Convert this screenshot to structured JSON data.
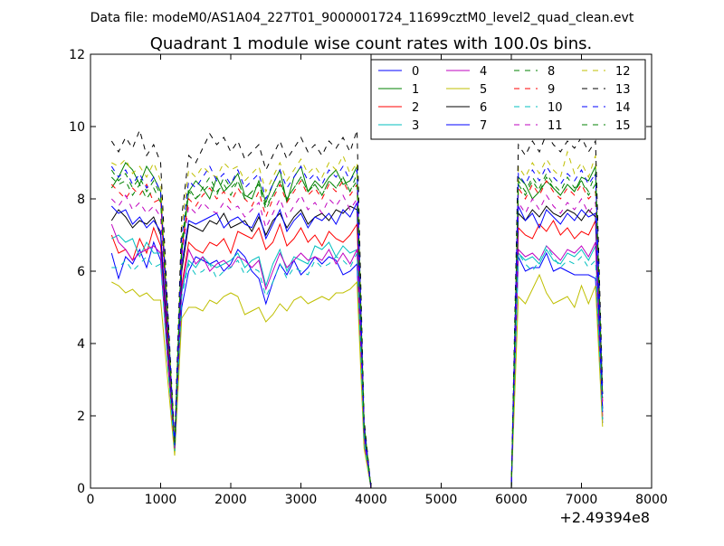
{
  "chart_data": {
    "type": "line",
    "suptitle": "Data file: modeM0/AS1A04_227T01_9000001724_11699cztM0_level2_quad_clean.evt",
    "title": "Quadrant 1 module wise count rates with 100.0s bins.",
    "xlabel": "",
    "ylabel": "",
    "x_offset_label": "+2.49394e8",
    "xlim": [
      0,
      8000
    ],
    "ylim": [
      0,
      12
    ],
    "xticks": [
      0,
      1000,
      2000,
      3000,
      4000,
      5000,
      6000,
      7000,
      8000
    ],
    "yticks": [
      0,
      2,
      4,
      6,
      8,
      10,
      12
    ],
    "legend_position": "top-right",
    "legend_columns": 4,
    "x": [
      300,
      400,
      500,
      600,
      700,
      800,
      900,
      1000,
      1100,
      1200,
      1300,
      1400,
      1500,
      1600,
      1700,
      1800,
      1900,
      2000,
      2100,
      2200,
      2300,
      2400,
      2500,
      2600,
      2700,
      2800,
      2900,
      3000,
      3100,
      3200,
      3300,
      3400,
      3500,
      3600,
      3700,
      3800,
      3900,
      4000,
      4100,
      4200,
      4300,
      4400,
      4500,
      4600,
      4700,
      4800,
      4900,
      5000,
      5100,
      5200,
      5300,
      5400,
      5500,
      5600,
      5700,
      5800,
      5900,
      6000,
      6100,
      6200,
      6300,
      6400,
      6500,
      6600,
      6700,
      6800,
      6900,
      7000,
      7100,
      7200,
      7300
    ],
    "series": [
      {
        "name": "0",
        "color": "#0000ff",
        "dash": "solid",
        "values": [
          6.5,
          5.8,
          6.4,
          6.2,
          6.6,
          6.1,
          6.8,
          6.3,
          3.5,
          1.0,
          5.0,
          6.0,
          6.4,
          6.3,
          6.2,
          6.3,
          6.0,
          6.2,
          6.6,
          6.4,
          6.0,
          5.8,
          5.1,
          5.7,
          6.2,
          5.9,
          6.3,
          5.9,
          6.1,
          6.4,
          6.2,
          6.4,
          6.3,
          5.9,
          6.0,
          6.2,
          1.2,
          0,
          0,
          0,
          0,
          0,
          0,
          0,
          0,
          0,
          0,
          0,
          0,
          0,
          0,
          0,
          0,
          0,
          0,
          0,
          0,
          0,
          6.4,
          6.0,
          6.1,
          6.1,
          6.5,
          6.0,
          6.1,
          6.0,
          5.9,
          5.9,
          5.9,
          5.8,
          1.8
        ]
      },
      {
        "name": "1",
        "color": "#008000",
        "dash": "solid",
        "values": [
          8.3,
          8.6,
          9.0,
          8.8,
          8.4,
          8.9,
          8.6,
          8.2,
          4.8,
          1.2,
          6.5,
          8.2,
          8.5,
          8.3,
          8.0,
          8.6,
          8.2,
          8.4,
          8.7,
          8.1,
          8.0,
          8.5,
          7.9,
          8.4,
          8.8,
          7.9,
          8.6,
          8.9,
          8.2,
          8.5,
          8.3,
          8.6,
          8.8,
          8.4,
          8.5,
          8.9,
          1.8,
          0,
          0,
          0,
          0,
          0,
          0,
          0,
          0,
          0,
          0,
          0,
          0,
          0,
          0,
          0,
          0,
          0,
          0,
          0,
          0,
          0,
          8.6,
          8.4,
          8.0,
          8.2,
          8.5,
          8.3,
          8.1,
          8.4,
          8.2,
          8.6,
          8.5,
          8.9,
          2.6
        ]
      },
      {
        "name": "2",
        "color": "#ff0000",
        "dash": "solid",
        "values": [
          7.0,
          6.5,
          6.6,
          6.3,
          6.9,
          6.5,
          7.2,
          6.7,
          3.8,
          1.1,
          5.6,
          6.8,
          6.6,
          6.5,
          6.8,
          6.7,
          6.9,
          6.5,
          7.1,
          7.0,
          6.9,
          7.2,
          6.6,
          6.8,
          7.3,
          6.7,
          6.9,
          7.2,
          6.8,
          7.0,
          6.7,
          7.1,
          6.9,
          6.8,
          7.0,
          7.3,
          1.4,
          0,
          0,
          0,
          0,
          0,
          0,
          0,
          0,
          0,
          0,
          0,
          0,
          0,
          0,
          0,
          0,
          0,
          0,
          0,
          0,
          0,
          7.2,
          7.0,
          6.9,
          7.3,
          7.1,
          7.4,
          7.0,
          7.2,
          6.9,
          7.1,
          7.0,
          7.4,
          2.0
        ]
      },
      {
        "name": "3",
        "color": "#00bfbf",
        "dash": "solid",
        "values": [
          6.9,
          7.0,
          6.8,
          6.9,
          6.4,
          6.8,
          6.5,
          6.5,
          3.6,
          1.0,
          5.4,
          6.3,
          6.1,
          6.4,
          6.2,
          6.1,
          6.2,
          6.3,
          6.5,
          6.1,
          6.3,
          6.4,
          5.6,
          6.2,
          6.6,
          6.0,
          6.4,
          6.3,
          6.2,
          6.7,
          6.6,
          6.8,
          6.4,
          6.7,
          6.5,
          6.6,
          1.3,
          0,
          0,
          0,
          0,
          0,
          0,
          0,
          0,
          0,
          0,
          0,
          0,
          0,
          0,
          0,
          0,
          0,
          0,
          0,
          0,
          0,
          6.5,
          6.3,
          6.4,
          6.2,
          6.6,
          6.3,
          6.2,
          6.5,
          6.4,
          6.6,
          6.3,
          6.7,
          1.9
        ]
      },
      {
        "name": "4",
        "color": "#bf00bf",
        "dash": "solid",
        "values": [
          7.3,
          6.8,
          6.6,
          6.3,
          6.5,
          6.6,
          6.7,
          6.5,
          3.6,
          1.0,
          5.5,
          6.6,
          6.2,
          6.4,
          6.0,
          6.2,
          6.3,
          6.1,
          6.4,
          6.3,
          6.1,
          6.3,
          5.5,
          6.0,
          6.5,
          6.1,
          6.3,
          6.5,
          6.3,
          6.4,
          6.3,
          6.6,
          6.2,
          6.5,
          6.2,
          6.6,
          1.3,
          0,
          0,
          0,
          0,
          0,
          0,
          0,
          0,
          0,
          0,
          0,
          0,
          0,
          0,
          0,
          0,
          0,
          0,
          0,
          0,
          0,
          6.6,
          6.4,
          6.5,
          6.3,
          6.7,
          6.5,
          6.3,
          6.6,
          6.5,
          6.7,
          6.4,
          6.8,
          1.9
        ]
      },
      {
        "name": "5",
        "color": "#bfbf00",
        "dash": "solid",
        "values": [
          5.7,
          5.6,
          5.4,
          5.5,
          5.3,
          5.4,
          5.2,
          5.2,
          3.0,
          0.9,
          4.7,
          5.0,
          5.0,
          4.9,
          5.2,
          5.1,
          5.3,
          5.4,
          5.3,
          4.8,
          4.9,
          5.0,
          4.6,
          4.8,
          5.1,
          4.9,
          5.2,
          5.3,
          5.1,
          5.2,
          5.3,
          5.2,
          5.4,
          5.4,
          5.5,
          5.7,
          1.1,
          0,
          0,
          0,
          0,
          0,
          0,
          0,
          0,
          0,
          0,
          0,
          0,
          0,
          0,
          0,
          0,
          0,
          0,
          0,
          0,
          0,
          5.3,
          5.1,
          5.5,
          5.9,
          5.4,
          5.1,
          5.2,
          5.3,
          5.0,
          5.6,
          5.1,
          5.6,
          1.7
        ]
      },
      {
        "name": "6",
        "color": "#000000",
        "dash": "solid",
        "values": [
          7.4,
          7.7,
          7.5,
          7.2,
          7.4,
          7.3,
          7.5,
          7.0,
          4.0,
          1.1,
          6.0,
          7.3,
          7.2,
          7.1,
          7.4,
          7.3,
          7.6,
          7.2,
          7.3,
          7.4,
          7.1,
          7.5,
          7.0,
          7.4,
          7.6,
          7.2,
          7.5,
          7.7,
          7.3,
          7.5,
          7.6,
          7.4,
          7.7,
          7.6,
          7.8,
          7.7,
          1.6,
          0,
          0,
          0,
          0,
          0,
          0,
          0,
          0,
          0,
          0,
          0,
          0,
          0,
          0,
          0,
          0,
          0,
          0,
          0,
          0,
          0,
          7.6,
          7.4,
          7.7,
          7.5,
          7.8,
          7.6,
          7.5,
          7.7,
          7.6,
          7.4,
          7.7,
          7.5,
          2.2
        ]
      },
      {
        "name": "7",
        "color": "#0000ff",
        "dash": "solid",
        "values": [
          7.8,
          7.6,
          7.7,
          7.3,
          7.5,
          7.2,
          7.4,
          7.1,
          4.2,
          1.1,
          6.2,
          7.4,
          7.3,
          7.4,
          7.5,
          7.6,
          7.2,
          7.4,
          7.5,
          7.3,
          7.2,
          7.6,
          6.9,
          7.3,
          7.7,
          7.1,
          7.4,
          7.6,
          7.2,
          7.5,
          7.4,
          7.6,
          7.3,
          7.7,
          7.5,
          7.9,
          1.5,
          0,
          0,
          0,
          0,
          0,
          0,
          0,
          0,
          0,
          0,
          0,
          0,
          0,
          0,
          0,
          0,
          0,
          0,
          0,
          0,
          0,
          7.8,
          7.4,
          7.6,
          7.2,
          7.7,
          7.5,
          7.3,
          7.6,
          7.4,
          7.7,
          7.5,
          7.6,
          2.1
        ]
      },
      {
        "name": "8",
        "color": "#008000",
        "dash": "dashed",
        "values": [
          8.8,
          8.5,
          8.7,
          8.3,
          8.6,
          8.2,
          8.5,
          8.1,
          4.6,
          1.2,
          6.8,
          8.3,
          8.0,
          8.2,
          8.4,
          8.1,
          8.6,
          8.3,
          8.5,
          8.0,
          8.2,
          8.4,
          7.8,
          8.1,
          8.5,
          8.0,
          8.3,
          8.6,
          8.2,
          8.4,
          8.1,
          8.5,
          8.3,
          8.6,
          8.2,
          8.7,
          1.7,
          0,
          0,
          0,
          0,
          0,
          0,
          0,
          0,
          0,
          0,
          0,
          0,
          0,
          0,
          0,
          0,
          0,
          0,
          0,
          0,
          0,
          8.5,
          8.2,
          8.6,
          8.3,
          8.7,
          8.4,
          8.2,
          8.6,
          8.3,
          8.5,
          8.2,
          8.7,
          2.5
        ]
      },
      {
        "name": "9",
        "color": "#ff0000",
        "dash": "dashed",
        "values": [
          8.4,
          8.2,
          8.0,
          8.3,
          8.1,
          8.4,
          7.9,
          8.0,
          4.4,
          1.2,
          6.6,
          8.0,
          7.8,
          8.1,
          8.3,
          8.0,
          8.2,
          7.9,
          8.3,
          8.0,
          7.8,
          8.2,
          7.5,
          8.0,
          8.4,
          7.9,
          8.2,
          8.5,
          8.1,
          8.3,
          8.0,
          8.4,
          8.2,
          8.5,
          8.1,
          8.4,
          1.6,
          0,
          0,
          0,
          0,
          0,
          0,
          0,
          0,
          0,
          0,
          0,
          0,
          0,
          0,
          0,
          0,
          0,
          0,
          0,
          0,
          0,
          8.3,
          8.0,
          8.4,
          8.1,
          8.5,
          8.2,
          8.0,
          8.3,
          8.1,
          8.4,
          8.0,
          8.2,
          2.4
        ]
      },
      {
        "name": "10",
        "color": "#00bfbf",
        "dash": "dashed",
        "values": [
          6.1,
          6.1,
          6.3,
          6.0,
          6.2,
          6.4,
          6.1,
          6.2,
          3.4,
          1.0,
          5.3,
          6.2,
          5.9,
          6.0,
          6.2,
          5.8,
          6.0,
          6.1,
          6.3,
          5.9,
          6.1,
          6.0,
          5.3,
          5.7,
          6.2,
          5.8,
          6.1,
          6.0,
          5.9,
          6.3,
          6.1,
          6.2,
          6.4,
          6.3,
          6.1,
          6.5,
          1.3,
          0,
          0,
          0,
          0,
          0,
          0,
          0,
          0,
          0,
          0,
          0,
          0,
          0,
          0,
          0,
          0,
          0,
          0,
          0,
          0,
          0,
          6.5,
          6.2,
          6.0,
          6.3,
          6.7,
          6.4,
          6.1,
          6.3,
          6.2,
          6.4,
          6.1,
          6.3,
          1.9
        ]
      },
      {
        "name": "11",
        "color": "#bf00bf",
        "dash": "dashed",
        "values": [
          8.0,
          7.8,
          8.1,
          7.7,
          7.9,
          7.6,
          7.8,
          7.5,
          4.2,
          1.1,
          6.4,
          7.8,
          7.6,
          7.9,
          7.7,
          7.6,
          7.9,
          7.7,
          7.8,
          7.5,
          7.7,
          7.9,
          7.2,
          7.6,
          8.0,
          7.5,
          7.8,
          8.1,
          7.7,
          7.9,
          7.6,
          8.0,
          7.8,
          8.1,
          7.7,
          8.0,
          1.6,
          0,
          0,
          0,
          0,
          0,
          0,
          0,
          0,
          0,
          0,
          0,
          0,
          0,
          0,
          0,
          0,
          0,
          0,
          0,
          0,
          0,
          7.9,
          7.6,
          8.0,
          7.7,
          8.1,
          7.8,
          7.6,
          7.9,
          7.7,
          8.0,
          7.6,
          7.9,
          2.3
        ]
      },
      {
        "name": "12",
        "color": "#bfbf00",
        "dash": "dashed",
        "values": [
          9.0,
          8.9,
          9.1,
          8.7,
          8.9,
          8.6,
          9.0,
          8.5,
          4.8,
          1.3,
          7.2,
          8.8,
          8.6,
          8.9,
          8.7,
          8.6,
          9.0,
          8.8,
          8.9,
          8.5,
          8.7,
          8.9,
          8.2,
          8.6,
          9.0,
          8.5,
          8.8,
          9.1,
          8.7,
          8.9,
          8.6,
          9.0,
          8.8,
          9.2,
          8.7,
          9.0,
          1.8,
          0,
          0,
          0,
          0,
          0,
          0,
          0,
          0,
          0,
          0,
          0,
          0,
          0,
          0,
          0,
          0,
          0,
          0,
          0,
          0,
          0,
          8.9,
          8.6,
          9.0,
          8.7,
          9.1,
          8.8,
          8.6,
          9.3,
          8.7,
          9.0,
          8.6,
          9.2,
          2.7
        ]
      },
      {
        "name": "13",
        "color": "#000000",
        "dash": "dashed",
        "values": [
          9.6,
          9.3,
          9.7,
          9.4,
          9.9,
          9.2,
          9.5,
          9.0,
          5.0,
          1.3,
          7.5,
          9.2,
          9.0,
          9.4,
          9.8,
          9.5,
          9.7,
          9.3,
          9.6,
          9.1,
          9.3,
          9.5,
          8.8,
          9.2,
          9.6,
          9.1,
          9.4,
          9.7,
          9.3,
          9.5,
          9.2,
          9.6,
          9.4,
          9.7,
          9.3,
          9.9,
          1.9,
          0,
          0,
          0,
          0,
          0,
          0,
          0,
          0,
          0,
          0,
          0,
          0,
          0,
          0,
          0,
          0,
          0,
          0,
          0,
          0,
          0,
          9.5,
          9.2,
          9.6,
          9.3,
          9.8,
          9.5,
          9.3,
          9.6,
          9.4,
          9.7,
          9.3,
          9.6,
          2.8
        ]
      },
      {
        "name": "14",
        "color": "#0000ff",
        "dash": "dashed",
        "values": [
          8.9,
          8.6,
          8.8,
          8.4,
          8.7,
          8.3,
          8.6,
          8.2,
          4.7,
          1.2,
          6.9,
          8.5,
          8.3,
          8.6,
          8.9,
          8.5,
          8.7,
          8.4,
          8.8,
          8.3,
          8.5,
          8.7,
          8.0,
          8.4,
          8.8,
          8.3,
          8.6,
          8.9,
          8.5,
          8.7,
          8.4,
          8.8,
          8.6,
          8.9,
          8.5,
          8.8,
          1.7,
          0,
          0,
          0,
          0,
          0,
          0,
          0,
          0,
          0,
          0,
          0,
          0,
          0,
          0,
          0,
          0,
          0,
          0,
          0,
          0,
          0,
          8.7,
          8.4,
          8.8,
          8.5,
          8.9,
          8.6,
          8.4,
          8.7,
          8.5,
          8.8,
          8.4,
          8.7,
          2.6
        ]
      },
      {
        "name": "15",
        "color": "#008000",
        "dash": "dashed",
        "values": [
          8.6,
          8.4,
          8.5,
          8.1,
          8.4,
          8.0,
          8.3,
          7.9,
          4.5,
          1.2,
          6.7,
          8.2,
          8.0,
          8.3,
          8.6,
          8.2,
          8.4,
          8.1,
          8.5,
          8.0,
          8.2,
          8.4,
          7.7,
          8.1,
          8.5,
          8.0,
          8.3,
          8.6,
          8.2,
          8.4,
          8.1,
          8.5,
          8.3,
          8.6,
          8.2,
          8.5,
          1.7,
          0,
          0,
          0,
          0,
          0,
          0,
          0,
          0,
          0,
          0,
          0,
          0,
          0,
          0,
          0,
          0,
          0,
          0,
          0,
          0,
          0,
          8.4,
          8.1,
          8.5,
          8.2,
          8.6,
          8.3,
          8.1,
          8.4,
          8.2,
          8.5,
          8.1,
          8.4,
          2.5
        ]
      }
    ]
  }
}
